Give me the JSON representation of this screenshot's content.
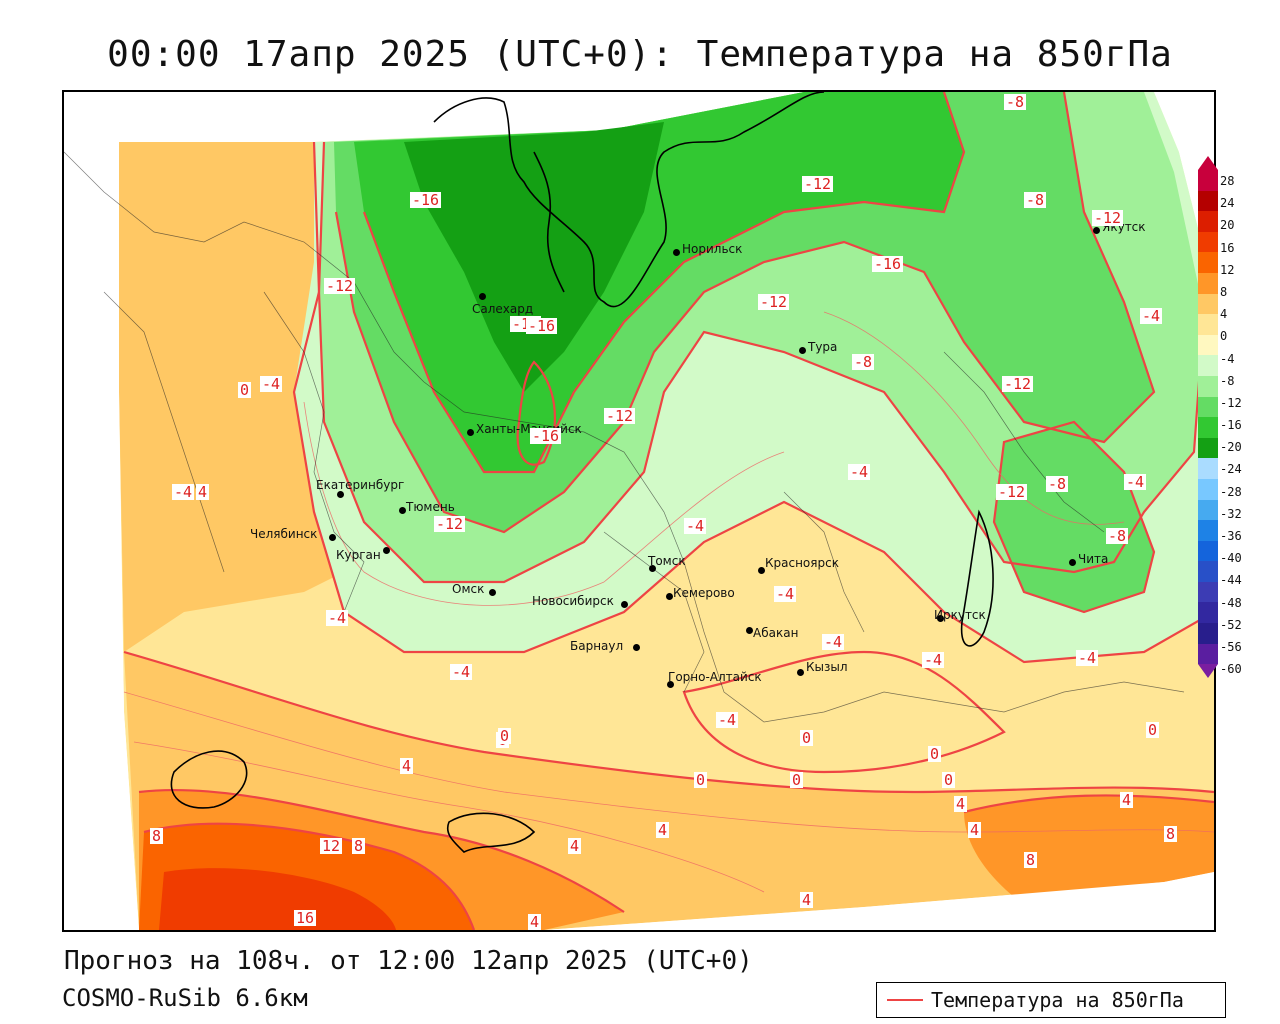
{
  "title": "00:00 17апр 2025 (UTC+0): Температура на 850гПа",
  "footer": {
    "forecast": "Прогноз на 108ч. от 12:00 12апр 2025 (UTC+0)",
    "model": "COSMO-RuSib 6.6км"
  },
  "legend": {
    "label": "Температура на 850гПа",
    "line_color": "#ee4444"
  },
  "colorbar": {
    "labels": [
      "28",
      "24",
      "20",
      "16",
      "12",
      "8",
      "4",
      "0",
      "-4",
      "-8",
      "-12",
      "-16",
      "-20",
      "-24",
      "-28",
      "-32",
      "-36",
      "-40",
      "-44",
      "-48",
      "-52",
      "-56",
      "-60"
    ],
    "colors": [
      "#c8003c",
      "#b40000",
      "#dc1e00",
      "#f03c00",
      "#fa6400",
      "#ff9628",
      "#ffc864",
      "#ffe696",
      "#fff8c0",
      "#d2fac8",
      "#a0f098",
      "#64dc64",
      "#32c832",
      "#14a014",
      "#aadcff",
      "#78c8ff",
      "#46aaf0",
      "#1e82e6",
      "#1464dc",
      "#2850c8",
      "#3c3cb4",
      "#3228a0",
      "#281e8c",
      "#5a1ea0"
    ]
  },
  "cities": [
    {
      "name": "Норильск"
    },
    {
      "name": "Якутск"
    },
    {
      "name": "Салехард"
    },
    {
      "name": "Тура"
    },
    {
      "name": "Ханты-Мансийск"
    },
    {
      "name": "Екатеринбург"
    },
    {
      "name": "Тюмень"
    },
    {
      "name": "Челябинск"
    },
    {
      "name": "Курган"
    },
    {
      "name": "Омск"
    },
    {
      "name": "Новосибирск"
    },
    {
      "name": "Томск"
    },
    {
      "name": "Кемерово"
    },
    {
      "name": "Красноярск"
    },
    {
      "name": "Абакан"
    },
    {
      "name": "Барнаул"
    },
    {
      "name": "Горно-Алтайск"
    },
    {
      "name": "Кызыл"
    },
    {
      "name": "Иркутск"
    },
    {
      "name": "Чита"
    }
  ],
  "contour_labels": [
    "-8",
    "-12",
    "-16",
    "-8",
    "-12",
    "-16",
    "-12",
    "-12",
    "-4",
    "-12",
    "-16",
    "-12",
    "-8",
    "-16",
    "-12",
    "-4",
    "0",
    "-4",
    "4",
    "-12",
    "-4",
    "-4",
    "-12",
    "-8",
    "-4",
    "-4",
    "-4",
    "-4",
    "-4",
    "0",
    "-4",
    "0",
    "0",
    "0",
    "0",
    "0",
    "4",
    "4",
    "4",
    "8",
    "12",
    "8",
    "16",
    "4",
    "4",
    "4",
    "4",
    "4",
    "8",
    "8",
    "-8",
    "-4",
    "-4",
    "0",
    "0",
    "4"
  ]
}
